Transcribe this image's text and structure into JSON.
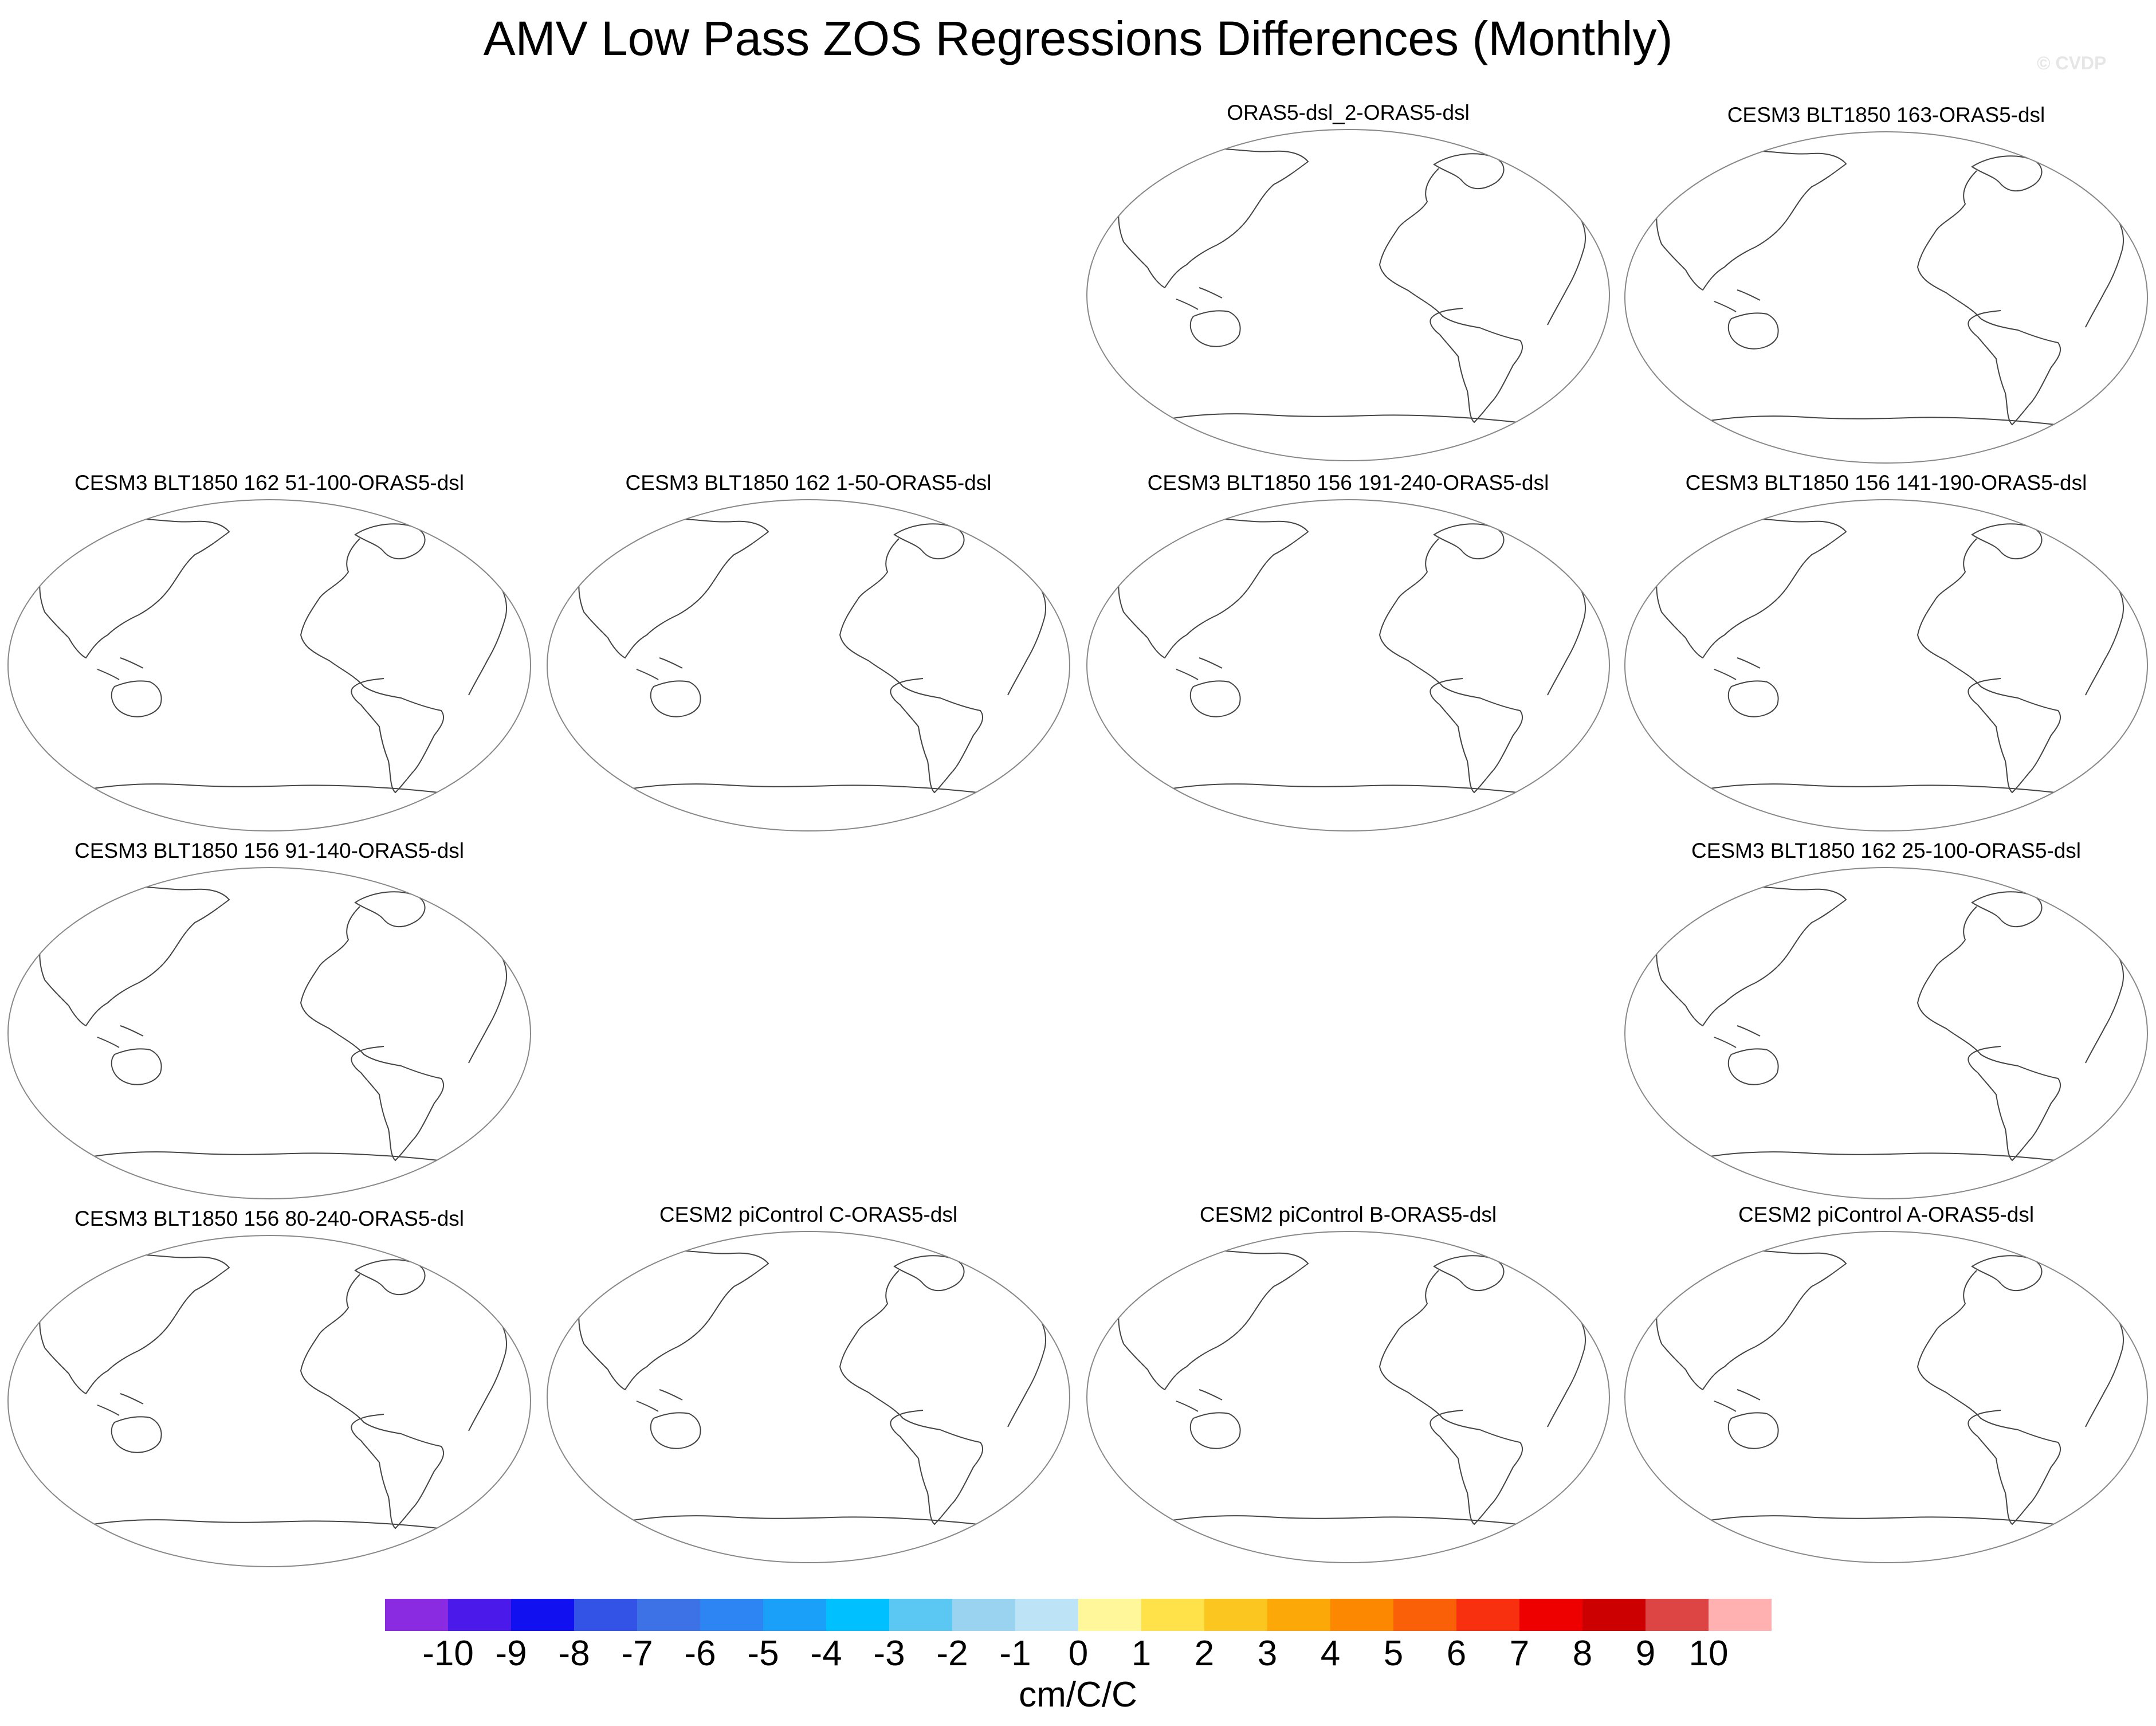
{
  "title": "AMV Low Pass ZOS Regressions Differences (Monthly)",
  "watermark": "© CVDP",
  "panels": [
    {
      "title": "ORAS5-dsl_2-ORAS5-dsl"
    },
    {
      "title": "CESM3 BLT1850 163-ORAS5-dsl"
    },
    {
      "title": "CESM3 BLT1850 162 51-100-ORAS5-dsl"
    },
    {
      "title": "CESM3 BLT1850 162 1-50-ORAS5-dsl"
    },
    {
      "title": "CESM3 BLT1850 156 191-240-ORAS5-dsl"
    },
    {
      "title": "CESM3 BLT1850 156 141-190-ORAS5-dsl"
    },
    {
      "title": "CESM3 BLT1850 156 91-140-ORAS5-dsl"
    },
    {
      "title": "CESM3 BLT1850 162 25-100-ORAS5-dsl"
    },
    {
      "title": "CESM3 BLT1850 156 80-240-ORAS5-dsl"
    },
    {
      "title": "CESM2 piControl C-ORAS5-dsl"
    },
    {
      "title": "CESM2 piControl B-ORAS5-dsl"
    },
    {
      "title": "CESM2 piControl A-ORAS5-dsl"
    }
  ],
  "colorbar": {
    "unit": "cm/C/C",
    "labels": [
      "-10",
      "-9",
      "-8",
      "-7",
      "-6",
      "-5",
      "-4",
      "-3",
      "-2",
      "-1",
      "0",
      "1",
      "2",
      "3",
      "4",
      "5",
      "6",
      "7",
      "8",
      "9",
      "10"
    ],
    "colors": [
      "#8a2be2",
      "#4b1aeb",
      "#1010f0",
      "#3352e6",
      "#3d72e6",
      "#2c85f2",
      "#1aa0f8",
      "#00c0ff",
      "#5ac8f2",
      "#9ad3ef",
      "#bde3f7",
      "#fff79a",
      "#ffe14a",
      "#fcc620",
      "#fba808",
      "#fb8800",
      "#f96008",
      "#f83010",
      "#ef0000",
      "#cc0000",
      "#dd4444",
      "#ffb0b0"
    ]
  }
}
